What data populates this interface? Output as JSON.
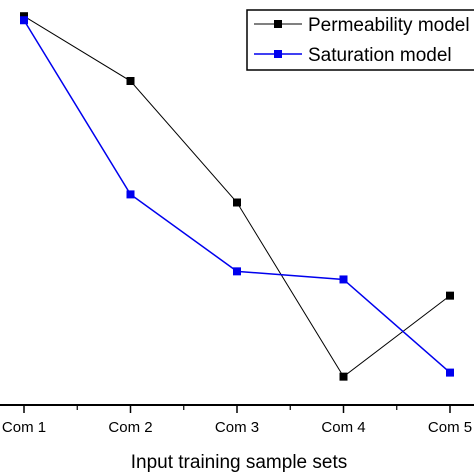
{
  "chart_data": {
    "type": "line",
    "xlabel": "Input training sample sets",
    "ylabel": "",
    "categories": [
      "Com 1",
      "Com 2",
      "Com 3",
      "Com 4",
      "Com 5"
    ],
    "ylim": [
      0,
      1
    ],
    "grid": false,
    "legend_position": "top-right",
    "series": [
      {
        "name": "Permeability model",
        "color": "#000000",
        "marker": "square",
        "values": [
          0.96,
          0.8,
          0.5,
          0.07,
          0.27
        ]
      },
      {
        "name": "Saturation model",
        "color": "#0000ee",
        "marker": "square",
        "values": [
          0.95,
          0.52,
          0.33,
          0.31,
          0.08
        ]
      }
    ]
  }
}
